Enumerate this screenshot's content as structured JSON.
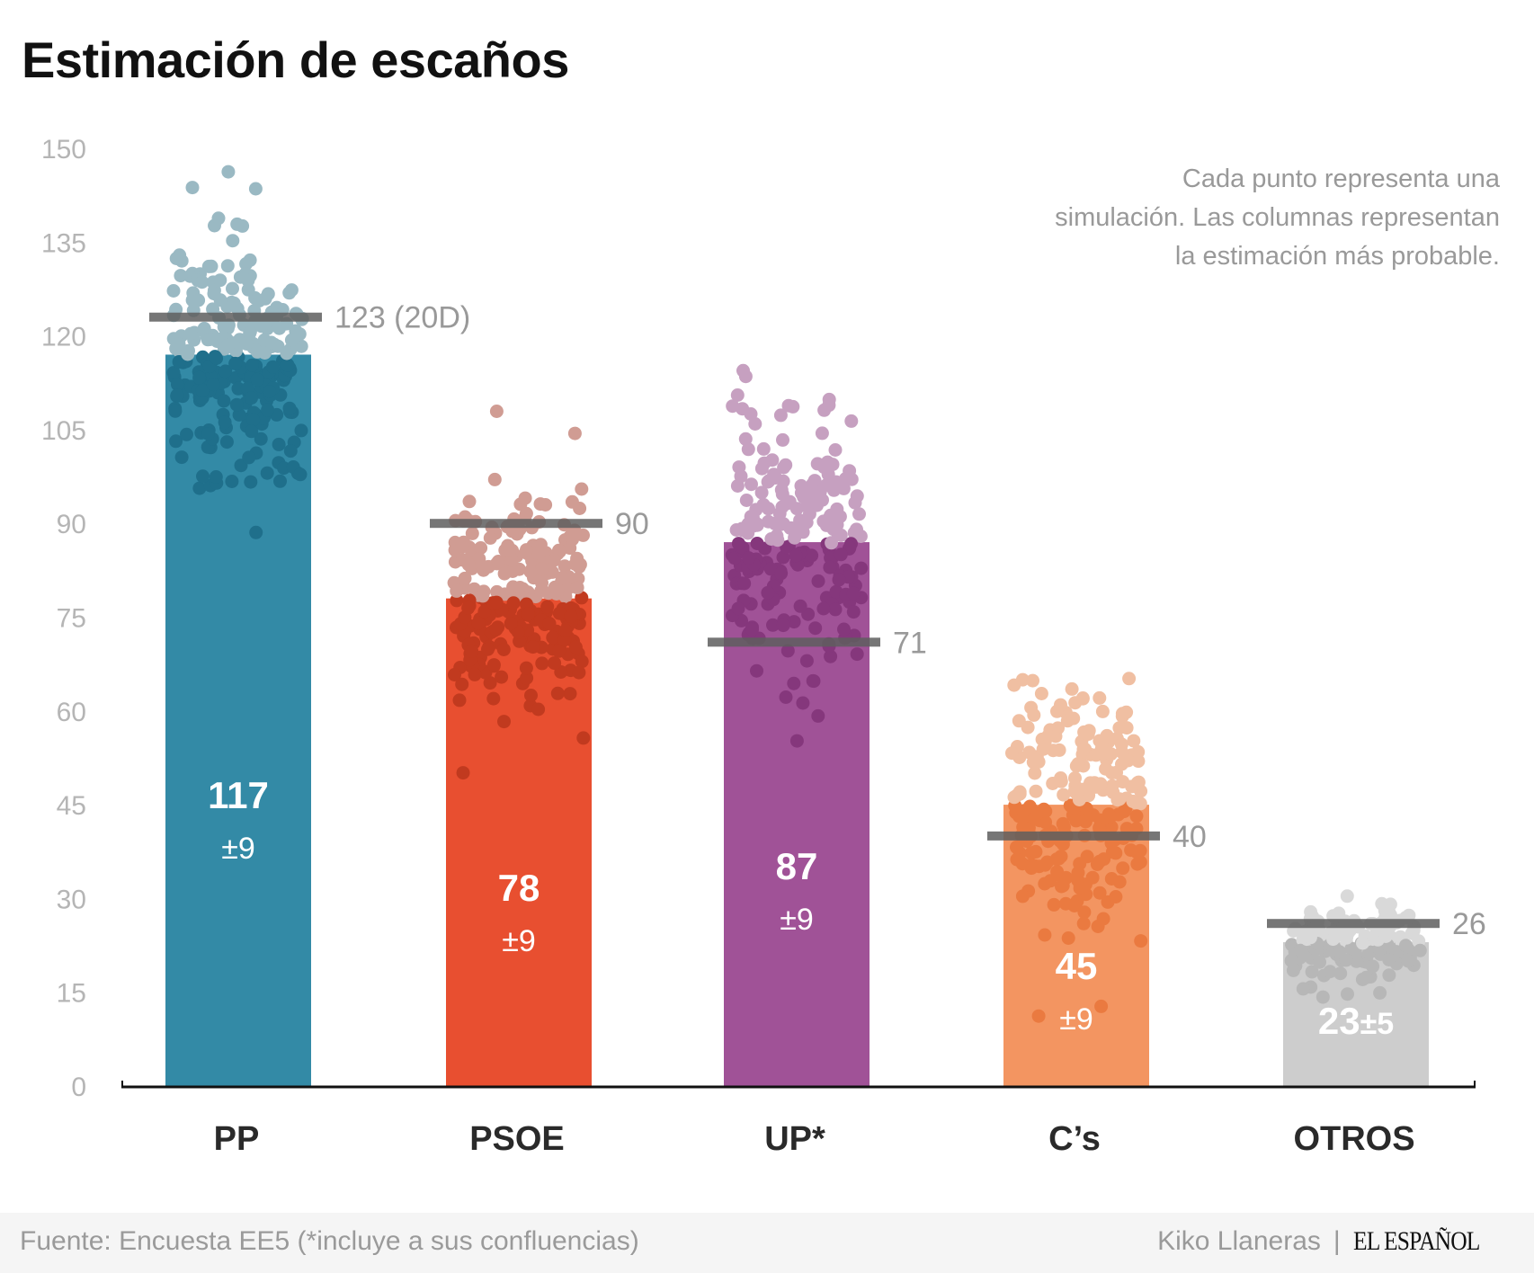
{
  "chart_data": {
    "type": "bar",
    "title": "Estimación de escaños",
    "note": "Cada punto representa una simulación. Las columnas representan la estimación más probable.",
    "note_lines": [
      "Cada punto representa una",
      "simulación. Las columnas representan",
      "la estimación más probable."
    ],
    "xlabel": "",
    "ylabel": "",
    "ylim": [
      0,
      150
    ],
    "yticks": [
      0,
      15,
      30,
      45,
      60,
      75,
      90,
      105,
      120,
      135,
      150
    ],
    "grid": false,
    "categories": [
      "PP",
      "PSOE",
      "UP*",
      "C’s",
      "OTROS"
    ],
    "values": [
      117,
      78,
      87,
      45,
      23
    ],
    "margins": [
      "±9",
      "±9",
      "±9",
      "±9",
      "±5"
    ],
    "previous_results": [
      123,
      90,
      71,
      40,
      26
    ],
    "previous_labels": [
      "123 (20D)",
      "90",
      "71",
      "40",
      "26"
    ],
    "simulations": {
      "description_visible": false,
      "spread_sd": [
        9,
        8,
        10,
        10,
        3
      ],
      "count": [
        260,
        260,
        230,
        240,
        150
      ]
    },
    "colors": {
      "bar": [
        "#338aa6",
        "#e84f30",
        "#a05297",
        "#f39561",
        "#cdcdcd"
      ],
      "dot_above": [
        "#9ab9c3",
        "#d09c93",
        "#c6a0c0",
        "#f0bfa2",
        "#d9d9d9"
      ],
      "dot_inside": [
        "#1f6f8b",
        "#c13a1f",
        "#85377c",
        "#ea7a40",
        "#b7b7b7"
      ],
      "previous_line": "#5e5e5e",
      "axis_label": "#b5b5b5",
      "prev_label": "#999999"
    }
  },
  "footer": {
    "source": "Fuente: Encuesta EE5 (*incluye a sus confluencias)",
    "author": "Kiko Llaneras",
    "separator": "|",
    "brand": "EL ESPAÑOL"
  }
}
